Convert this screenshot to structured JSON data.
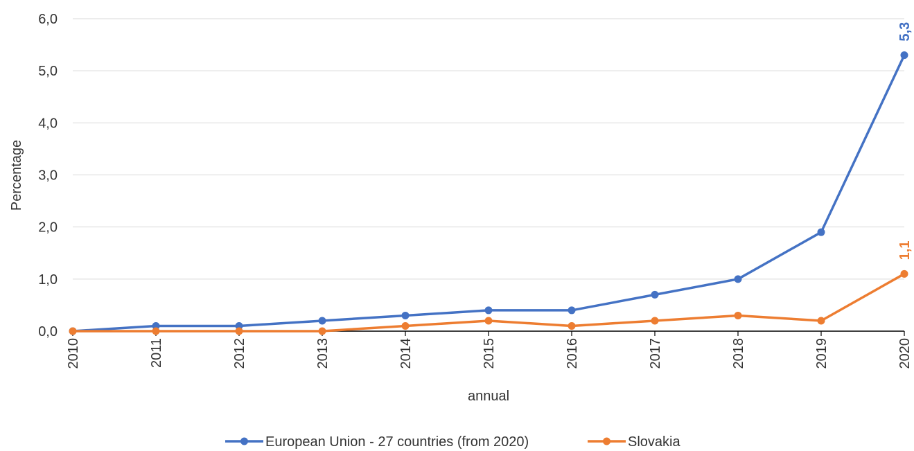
{
  "chart_data": {
    "type": "line",
    "xlabel": "annual",
    "ylabel": "Percentage",
    "ylim": [
      0,
      6
    ],
    "y_ticks": [
      "0,0",
      "1,0",
      "2,0",
      "3,0",
      "4,0",
      "5,0",
      "6,0"
    ],
    "grid": true,
    "legend_position": "bottom",
    "categories": [
      "2010",
      "2011",
      "2012",
      "2013",
      "2014",
      "2015",
      "2016",
      "2017",
      "2018",
      "2019",
      "2020"
    ],
    "series": [
      {
        "name": "European Union - 27 countries (from 2020)",
        "color": "#4472c4",
        "values": [
          0.0,
          0.1,
          0.1,
          0.2,
          0.3,
          0.4,
          0.4,
          0.7,
          1.0,
          1.9,
          5.3
        ],
        "end_label": "5,3"
      },
      {
        "name": "Slovakia",
        "color": "#ed7d31",
        "values": [
          0.0,
          0.0,
          0.0,
          0.0,
          0.1,
          0.2,
          0.1,
          0.2,
          0.3,
          0.2,
          1.1
        ],
        "end_label": "1,1"
      }
    ]
  }
}
